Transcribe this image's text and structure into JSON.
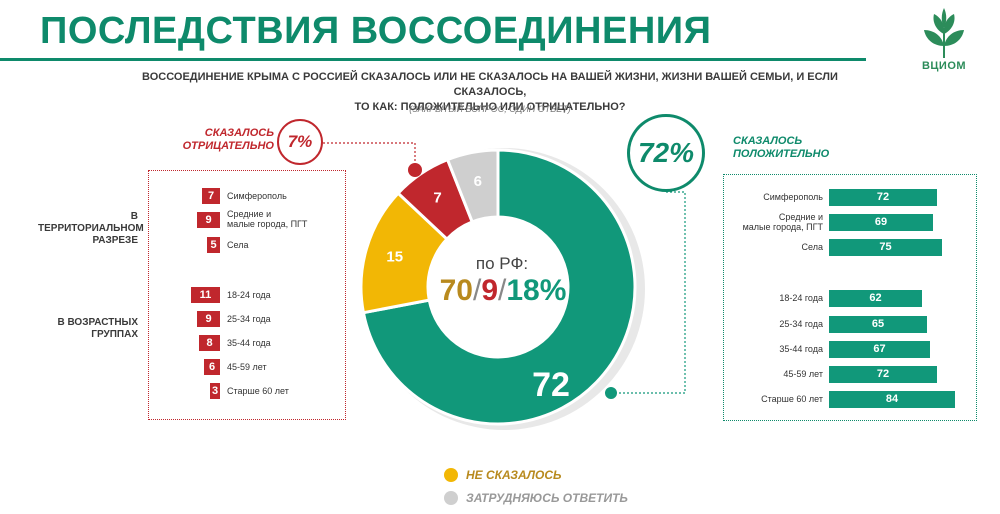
{
  "title": "ПОСЛЕДСТВИЯ ВОССОЕДИНЕНИЯ",
  "logo_text": "ВЦИОМ",
  "question_line1": "ВОССОЕДИНЕНИЕ КРЫМА С РОССИЕЙ СКАЗАЛОСЬ ИЛИ НЕ СКАЗАЛОСЬ НА ВАШЕЙ ЖИЗНИ, ЖИЗНИ ВАШЕЙ СЕМЬИ, И ЕСЛИ СКАЗАЛОСЬ,",
  "question_line2": "ТО КАК: ПОЛОЖИТЕЛЬНО ИЛИ ОТРИЦАТЕЛЬНО?",
  "note": "(ЗАКРЫТЫЙ ВОПРОС, ОДИН ОТВЕТ)",
  "negative": {
    "label_line1": "СКАЗАЛОСЬ",
    "label_line2": "ОТРИЦАТЕЛЬНО",
    "total": "7%"
  },
  "positive": {
    "label_line1": "СКАЗАЛОСЬ",
    "label_line2": "ПОЛОЖИТЕЛЬНО",
    "total": "72%"
  },
  "group_labels": {
    "territorial_line1": "В ТЕРРИТОРИАЛЬНОМ",
    "territorial_line2": "РАЗРЕЗЕ",
    "age_line1": "В ВОЗРАСТНЫХ",
    "age_line2": "ГРУППАХ"
  },
  "center": {
    "label": "по РФ:",
    "v1": "70",
    "sep1": "/",
    "v2": "9",
    "sep2": "/",
    "v3": "18%"
  },
  "legend": {
    "not_affected": "НЕ СКАЗАЛОСЬ",
    "hard_to_say": "ЗАТРУДНЯЮСЬ ОТВЕТИТЬ"
  },
  "colors": {
    "positive": "#11987a",
    "negative": "#c0272d",
    "not_affected": "#f2b705",
    "hard_to_say": "#cfcfcf",
    "title": "#0e8a6b"
  },
  "chart_data": [
    {
      "type": "pie",
      "categories": [
        "Сказалось положительно",
        "Не сказалось",
        "Сказалось отрицательно",
        "Затрудняюсь ответить"
      ],
      "values": [
        72,
        15,
        7,
        6
      ],
      "data_labels": [
        "72",
        "15",
        "7",
        "6"
      ]
    },
    {
      "type": "bar",
      "title": "Сказалось отрицательно",
      "categories": [
        "Симферополь",
        "Средние и малые города, ПГТ",
        "Села",
        "18-24 года",
        "25-34 года",
        "35-44 года",
        "45-59 лет",
        "Старше 60 лет"
      ],
      "values": [
        7,
        9,
        5,
        11,
        9,
        8,
        6,
        3
      ],
      "label_lines": [
        [
          "Симферополь"
        ],
        [
          "Средние и",
          "малые города, ПГТ"
        ],
        [
          "Села"
        ],
        [
          "18-24 года"
        ],
        [
          "25-34 года"
        ],
        [
          "35-44 года"
        ],
        [
          "45-59 лет"
        ],
        [
          "Старше 60 лет"
        ]
      ]
    },
    {
      "type": "bar",
      "title": "Сказалось положительно",
      "categories": [
        "Симферополь",
        "Средние и малые города, ПГТ",
        "Села",
        "18-24 года",
        "25-34 года",
        "35-44 года",
        "45-59 лет",
        "Старше 60 лет"
      ],
      "values": [
        72,
        69,
        75,
        62,
        65,
        67,
        72,
        84
      ],
      "label_lines": [
        [
          "Симферополь"
        ],
        [
          "Средние и",
          "малые города, ПГТ"
        ],
        [
          "Села"
        ],
        [
          "18-24 года"
        ],
        [
          "25-34 года"
        ],
        [
          "35-44 года"
        ],
        [
          "45-59 лет"
        ],
        [
          "Старше 60 лет"
        ]
      ]
    }
  ]
}
